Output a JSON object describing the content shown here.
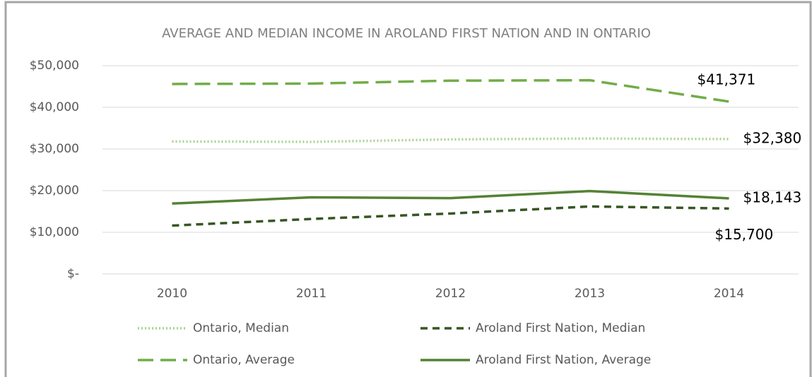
{
  "chart_data": {
    "type": "line",
    "title": "AVERAGE AND MEDIAN INCOME IN AROLAND FIRST NATION AND IN ONTARIO",
    "categories": [
      "2010",
      "2011",
      "2012",
      "2013",
      "2014"
    ],
    "series": [
      {
        "name": "Ontario, Median",
        "color": "#a9d18e",
        "dash": "dotted",
        "values": [
          31800,
          31700,
          32300,
          32500,
          32380
        ],
        "value_labels": [
          null,
          null,
          null,
          null,
          "$32,380"
        ]
      },
      {
        "name": "Aroland First Nation, Median",
        "color": "#375623",
        "dash": "dashed",
        "values": [
          11600,
          13200,
          14500,
          16200,
          15700
        ],
        "value_labels": [
          null,
          null,
          null,
          null,
          "$15,700"
        ]
      },
      {
        "name": "Ontario, Average",
        "color": "#70ad47",
        "dash": "long-dash",
        "values": [
          45600,
          45700,
          46400,
          46500,
          41371
        ],
        "value_labels": [
          null,
          null,
          null,
          null,
          "$41,371"
        ]
      },
      {
        "name": "Aroland First Nation, Average",
        "color": "#548235",
        "dash": "solid",
        "values": [
          16900,
          18400,
          18200,
          19900,
          18143
        ],
        "value_labels": [
          null,
          null,
          null,
          null,
          "$18,143"
        ]
      }
    ],
    "ylim": [
      0,
      50000
    ],
    "yticks": [
      {
        "value": 0,
        "label": "$-"
      },
      {
        "value": 10000,
        "label": "$10,000"
      },
      {
        "value": 20000,
        "label": "$20,000"
      },
      {
        "value": 30000,
        "label": "$30,000"
      },
      {
        "value": 40000,
        "label": "$40,000"
      },
      {
        "value": 50000,
        "label": "$50,000"
      }
    ],
    "grid": true
  }
}
